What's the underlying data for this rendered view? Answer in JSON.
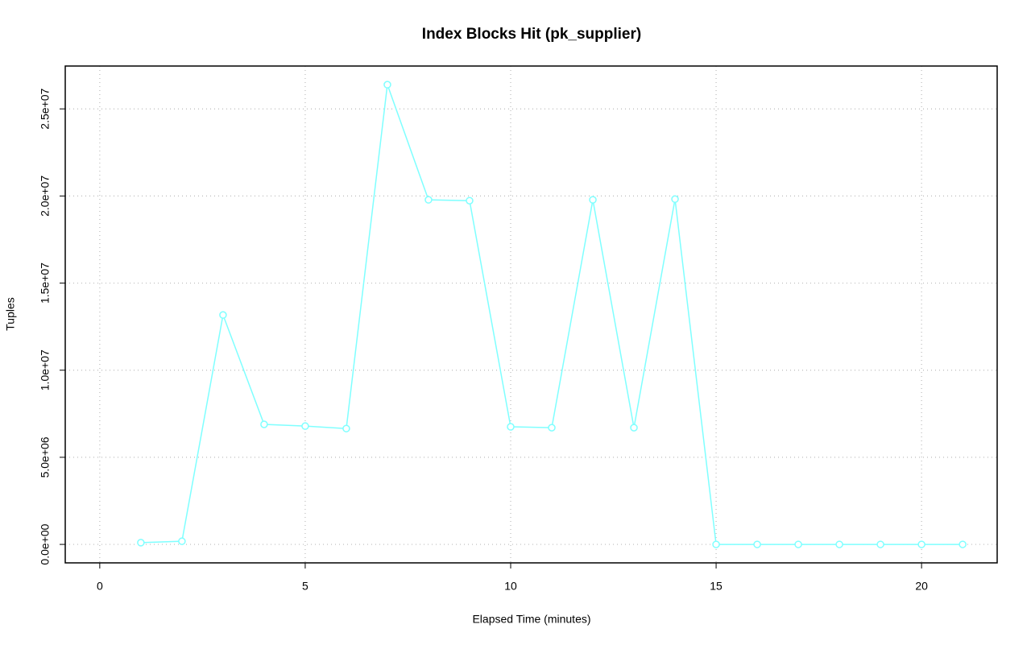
{
  "chart_data": {
    "type": "line",
    "title": "Index Blocks Hit (pk_supplier)",
    "x_label": "Elapsed Time (minutes)",
    "y_label": "Tuples",
    "x": [
      1,
      2,
      3,
      4,
      5,
      6,
      7,
      8,
      9,
      10,
      11,
      12,
      13,
      14,
      15,
      16,
      17,
      18,
      19,
      20,
      21
    ],
    "series": [
      {
        "name": "pk_supplier",
        "color": "#7fffff",
        "values": [
          100000,
          180000,
          13170000,
          6890000,
          6790000,
          6650000,
          26390000,
          19780000,
          19730000,
          6750000,
          6700000,
          19780000,
          6700000,
          19820000,
          0,
          0,
          0,
          0,
          0,
          0,
          0
        ]
      }
    ],
    "xlim": [
      -0.84,
      21.84
    ],
    "xticks": [
      0,
      5,
      10,
      15,
      20
    ],
    "ylim": [
      -1060000,
      27460000
    ],
    "yticks": [
      {
        "value": 0,
        "label": "0.0e+00"
      },
      {
        "value": 5000000,
        "label": "5.0e+06"
      },
      {
        "value": 10000000,
        "label": "1.0e+07"
      },
      {
        "value": 15000000,
        "label": "1.5e+07"
      },
      {
        "value": 20000000,
        "label": "2.0e+07"
      },
      {
        "value": 25000000,
        "label": "2.5e+07"
      }
    ],
    "grid": true
  }
}
